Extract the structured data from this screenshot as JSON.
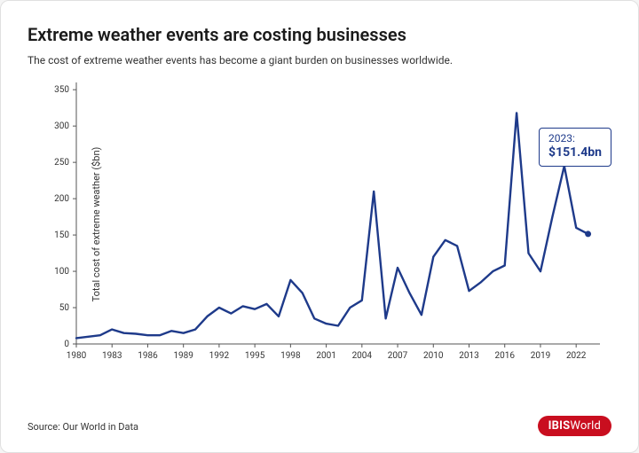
{
  "title": "Extreme weather events are costing businesses",
  "subtitle": "The cost of extreme weather events has become a giant burden on businesses worldwide.",
  "source": "Source: Our World in Data",
  "logo": {
    "bold": "IBIS",
    "light": "World",
    "bg": "#c90e1f",
    "fg": "#ffffff"
  },
  "chart": {
    "type": "line",
    "ylabel": "Total cost of extreme weather ($bn)",
    "line_color": "#1e3a8a",
    "line_width": 2.4,
    "end_marker_color": "#1e3a8a",
    "end_marker_radius": 3.5,
    "background_color": "#ffffff",
    "axis_color": "#555555",
    "tick_color": "#555555",
    "tick_font_size": 10,
    "label_font_size": 11,
    "xlim": [
      1980,
      2024
    ],
    "ylim": [
      0,
      360
    ],
    "yticks": [
      0,
      50,
      100,
      150,
      200,
      250,
      300,
      350
    ],
    "xticks": [
      1980,
      1983,
      1986,
      1989,
      1992,
      1995,
      1998,
      2001,
      2004,
      2007,
      2010,
      2013,
      2016,
      2019,
      2022
    ],
    "years": [
      1980,
      1981,
      1982,
      1983,
      1984,
      1985,
      1986,
      1987,
      1988,
      1989,
      1990,
      1991,
      1992,
      1993,
      1994,
      1995,
      1996,
      1997,
      1998,
      1999,
      2000,
      2001,
      2002,
      2003,
      2004,
      2005,
      2006,
      2007,
      2008,
      2009,
      2010,
      2011,
      2012,
      2013,
      2014,
      2015,
      2016,
      2017,
      2018,
      2019,
      2020,
      2021,
      2022,
      2023
    ],
    "values": [
      8,
      10,
      12,
      20,
      15,
      14,
      12,
      12,
      18,
      15,
      20,
      38,
      50,
      42,
      52,
      48,
      55,
      38,
      88,
      70,
      35,
      28,
      25,
      50,
      60,
      210,
      35,
      105,
      70,
      40,
      120,
      143,
      135,
      73,
      85,
      100,
      108,
      318,
      125,
      100,
      175,
      245,
      160,
      151.4
    ],
    "callout": {
      "year_label": "2023:",
      "value_label": "$151.4bn",
      "border": "#1e3a8a",
      "text": "#1e3a8a"
    }
  }
}
